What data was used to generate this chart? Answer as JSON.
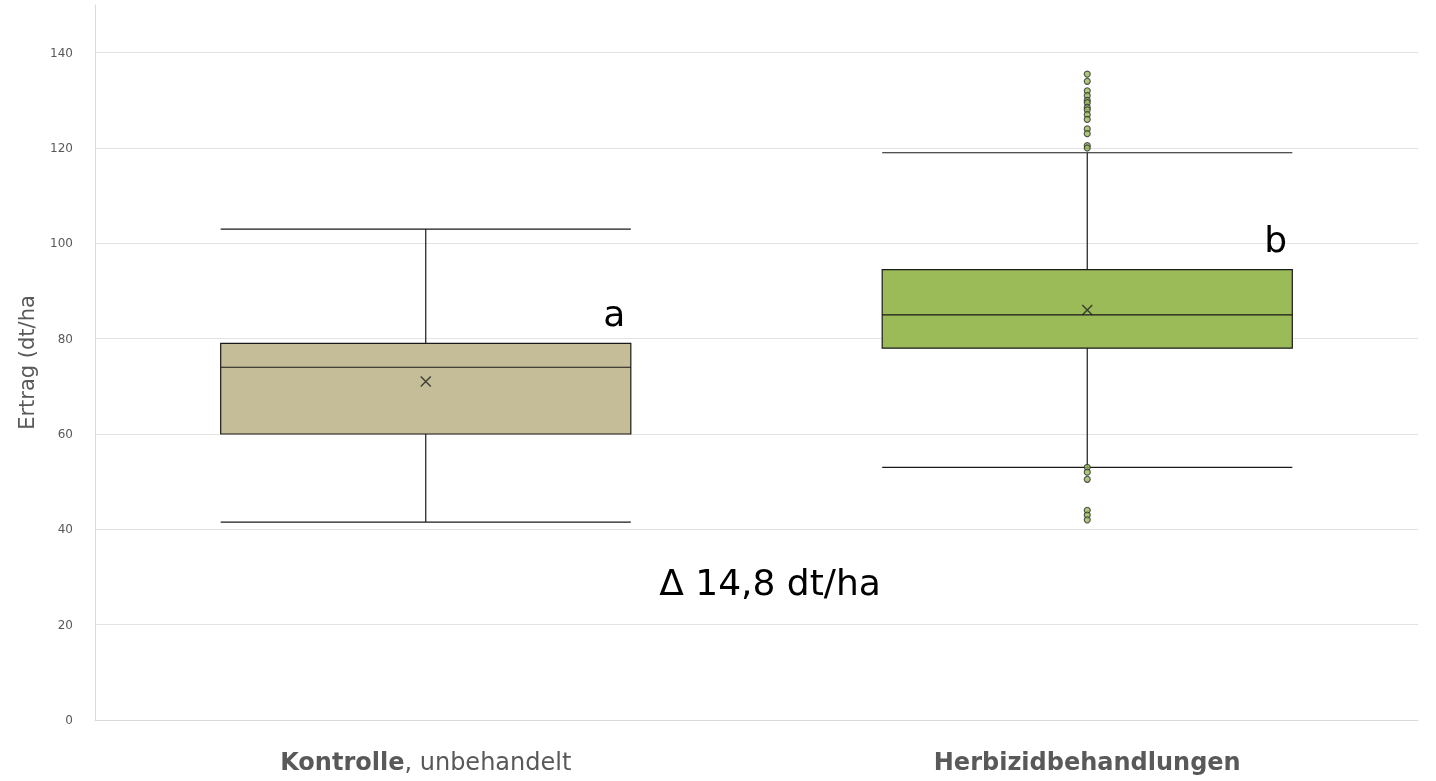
{
  "chart_data": {
    "type": "box",
    "categories": [
      "Kontrolle, unbehandelt",
      "Herbizidbehandlungen"
    ],
    "boxes": [
      {
        "low": 41.5,
        "q1": 60,
        "median": 74,
        "q3": 79,
        "high": 103,
        "mean": 71
      },
      {
        "low": 53,
        "q1": 78,
        "median": 85,
        "q3": 94.5,
        "high": 119,
        "mean": 86,
        "outliers": [
          135.5,
          134,
          132,
          131,
          130,
          129.5,
          128.5,
          128,
          127,
          126,
          124,
          123,
          120.5,
          120,
          53,
          52,
          50.5,
          44,
          43,
          42
        ]
      }
    ],
    "colors": [
      "#c4bd97",
      "#9bbb59"
    ],
    "ylabel": "Ertrag (dt/ha",
    "ylim": [
      0,
      150
    ],
    "yticks": [
      0,
      20,
      40,
      60,
      80,
      100,
      120,
      140
    ],
    "grid": "y",
    "annotations": [
      "a",
      "b",
      "Δ 14,8 dt/ha"
    ]
  }
}
